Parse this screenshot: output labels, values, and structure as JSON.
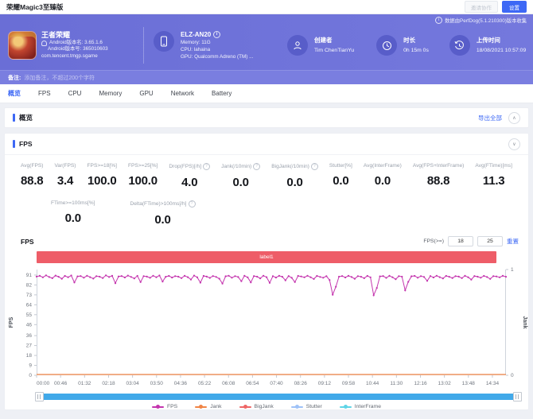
{
  "window": {
    "title": "荣耀Magic3至臻版",
    "share_button": "邀请协作",
    "settings_button": "设置"
  },
  "banner": {
    "collect_note": "数据由PerfDog(5.1.210300)版本收集",
    "app": {
      "name": "王者荣耀",
      "version_name": "Android版本名: 3.65.1.6",
      "version_code": "Android版本号: 365010603",
      "package": "com.tencent.tmgp.sgame"
    },
    "device": {
      "model": "ELZ-AN20",
      "memory": "Memory: 11G",
      "cpu": "CPU: lahaina",
      "gpu": "GPU: Qualcomm Adreno (TM) ..."
    },
    "creator": {
      "label": "创建者",
      "value": "Tim ChenTianYu"
    },
    "duration": {
      "label": "时长",
      "value": "0h 15m 0s"
    },
    "upload": {
      "label": "上传时间",
      "value": "18/08/2021 10:57:09"
    }
  },
  "note_bar": {
    "label": "备注:",
    "placeholder": "添加备注，不超过200个字符"
  },
  "tabs": [
    "概览",
    "FPS",
    "CPU",
    "Memory",
    "GPU",
    "Network",
    "Battery"
  ],
  "overview": {
    "title": "概览",
    "export_all": "导出全部"
  },
  "fps_panel": {
    "title": "FPS",
    "metrics_row1": [
      {
        "label": "Avg(FPS)",
        "value": "88.8",
        "help": false
      },
      {
        "label": "Var(FPS)",
        "value": "3.4",
        "help": false
      },
      {
        "label": "FPS>=18[%]",
        "value": "100.0",
        "help": false
      },
      {
        "label": "FPS>=25[%]",
        "value": "100.0",
        "help": false
      },
      {
        "label": "Drop(FPS)[/h]",
        "value": "4.0",
        "help": true
      },
      {
        "label": "Jank(/10min)",
        "value": "0.0",
        "help": true
      },
      {
        "label": "BigJank(/10min)",
        "value": "0.0",
        "help": true
      },
      {
        "label": "Stutter[%]",
        "value": "0.0",
        "help": false
      },
      {
        "label": "Avg(InterFrame)",
        "value": "0.0",
        "help": false
      },
      {
        "label": "Avg(FPS+InterFrame)",
        "value": "88.8",
        "help": false
      },
      {
        "label": "Avg(FTime)[ms]",
        "value": "11.3",
        "help": false
      }
    ],
    "metrics_row2": [
      {
        "label": "FTime>=100ms[%]",
        "value": "0.0",
        "help": false
      },
      {
        "label": "Delta(FTime)>100ms[/h]",
        "value": "0.0",
        "help": true
      }
    ],
    "chart_title": "FPS",
    "threshold": {
      "label": "FPS(>=)",
      "value1": "18",
      "value2": "25",
      "reset": "重置"
    },
    "label_bar": "label1"
  },
  "chart_data": {
    "type": "line",
    "title": "FPS",
    "ylabel_left": "FPS",
    "ylabel_right": "Jank",
    "ylim_left": [
      0,
      96
    ],
    "y_ticks_left": [
      0,
      9,
      18,
      27,
      36,
      46,
      55,
      64,
      73,
      82,
      91
    ],
    "ylim_right": [
      0,
      1
    ],
    "y_ticks_right": [
      0,
      1
    ],
    "duration_s": 900,
    "x_tick_interval_s": 46,
    "x_ticks": [
      "00:00",
      "00:46",
      "01:32",
      "02:18",
      "03:04",
      "03:50",
      "04:36",
      "05:22",
      "06:08",
      "06:54",
      "07:40",
      "08:26",
      "09:12",
      "09:58",
      "10:44",
      "11:30",
      "12:16",
      "13:02",
      "13:48",
      "14:34"
    ],
    "grid": false,
    "legend_position": "bottom",
    "legend": [
      "FPS",
      "Jank",
      "BigJank",
      "Stutter",
      "InterFrame"
    ],
    "legend_colors": {
      "FPS": "#c435ae",
      "Jank": "#f08445",
      "BigJank": "#ee6666",
      "Stutter": "#9fc2f7",
      "InterFrame": "#5fd4e6"
    },
    "series": [
      {
        "name": "FPS",
        "color": "#c435ae",
        "axis": "left",
        "values": [
          89.6,
          90.3,
          88.9,
          90.7,
          89.2,
          88.1,
          90.5,
          89.4,
          87.6,
          90.2,
          89.0,
          90.6,
          84.2,
          89.8,
          90.1,
          88.6,
          90.4,
          89.1,
          87.8,
          90.0,
          89.5,
          88.3,
          90.7,
          89.2,
          90.3,
          83.6,
          89.7,
          90.1,
          88.8,
          90.5,
          89.3,
          87.9,
          90.2,
          84.6,
          90.0,
          89.6,
          88.5,
          90.4,
          89.0,
          90.6,
          85.1,
          89.4,
          90.2,
          88.7,
          90.0,
          89.5,
          88.2,
          90.3,
          89.1,
          86.9,
          90.5,
          89.0,
          84.1,
          90.2,
          89.6,
          88.4,
          90.1,
          89.3,
          87.7,
          83.2,
          89.9,
          90.4,
          88.6,
          90.0,
          89.2,
          85.4,
          90.3,
          88.9,
          84.3,
          90.1,
          89.5,
          88.0,
          90.4,
          89.1,
          83.9,
          90.0,
          88.7,
          90.3,
          89.4,
          86.2,
          90.1,
          88.5,
          84.6,
          90.2,
          89.7,
          88.9,
          90.4,
          89.0,
          87.4,
          90.2,
          89.3,
          88.6,
          90.0,
          86.5,
          73.2,
          80.4,
          89.5,
          90.1,
          88.8,
          90.3,
          89.2,
          87.6,
          90.0,
          89.4,
          88.1,
          90.2,
          88.9,
          72.6,
          79.3,
          89.8,
          90.1,
          88.4,
          90.3,
          89.0,
          87.2,
          90.0,
          89.5,
          77.1,
          84.8,
          89.9,
          90.2,
          88.6,
          90.0,
          89.3,
          85.7,
          90.1,
          88.8,
          90.4,
          89.1,
          87.9,
          90.2,
          89.4,
          88.3,
          90.0,
          89.6,
          88.2,
          90.3,
          89.0,
          86.8,
          90.1,
          89.5,
          88.6,
          90.2,
          89.2,
          87.5,
          90.0,
          89.7,
          88.9,
          90.3,
          89.4
        ]
      },
      {
        "name": "Jank",
        "color": "#f08445",
        "axis": "right",
        "constant": 0
      }
    ]
  }
}
